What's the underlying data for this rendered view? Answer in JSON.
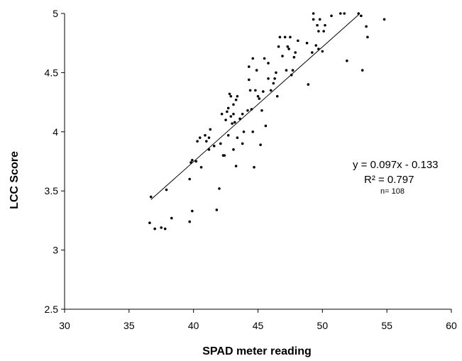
{
  "chart_data": {
    "type": "scatter",
    "title": "",
    "xlabel": "SPAD meter reading",
    "ylabel": "LCC Score",
    "xlim": [
      30,
      60
    ],
    "ylim": [
      2.5,
      5
    ],
    "xticks": [
      30,
      35,
      40,
      45,
      50,
      55,
      60
    ],
    "yticks": [
      2.5,
      3,
      3.5,
      4,
      4.5,
      5
    ],
    "grid": false,
    "legend": "none",
    "colors": {
      "points": "#000000",
      "trendline": "#000000",
      "axes": "#000000"
    },
    "trendline": {
      "slope": 0.097,
      "intercept": -0.133,
      "x_range": [
        36.7,
        52.9
      ]
    },
    "annotations": {
      "equation": "y = 0.097x - 0.133",
      "r_squared": "R² = 0.797",
      "n": "n= 108"
    },
    "points": [
      [
        36.6,
        3.23
      ],
      [
        36.7,
        3.45
      ],
      [
        37.0,
        3.18
      ],
      [
        37.5,
        3.19
      ],
      [
        37.8,
        3.18
      ],
      [
        37.9,
        3.51
      ],
      [
        38.3,
        3.27
      ],
      [
        39.7,
        3.24
      ],
      [
        39.7,
        3.6
      ],
      [
        39.8,
        3.74
      ],
      [
        39.9,
        3.76
      ],
      [
        39.9,
        3.33
      ],
      [
        40.2,
        3.75
      ],
      [
        40.3,
        3.92
      ],
      [
        40.5,
        3.95
      ],
      [
        40.6,
        3.7
      ],
      [
        40.9,
        3.97
      ],
      [
        41.0,
        3.92
      ],
      [
        41.2,
        3.85
      ],
      [
        41.2,
        3.95
      ],
      [
        41.3,
        4.02
      ],
      [
        41.8,
        3.34
      ],
      [
        42.0,
        3.52
      ],
      [
        42.1,
        3.9
      ],
      [
        42.2,
        4.15
      ],
      [
        42.3,
        3.8
      ],
      [
        42.4,
        3.8
      ],
      [
        42.5,
        4.1
      ],
      [
        42.6,
        4.17
      ],
      [
        42.7,
        4.2
      ],
      [
        42.7,
        3.97
      ],
      [
        42.8,
        4.32
      ],
      [
        42.9,
        4.13
      ],
      [
        42.9,
        4.3
      ],
      [
        43.1,
        4.15
      ],
      [
        43.1,
        4.23
      ],
      [
        43.1,
        3.85
      ],
      [
        43.2,
        4.08
      ],
      [
        43.3,
        3.71
      ],
      [
        43.3,
        4.27
      ],
      [
        43.4,
        4.3
      ],
      [
        43.4,
        3.95
      ],
      [
        43.6,
        4.11
      ],
      [
        43.8,
        3.9
      ],
      [
        43.8,
        4.15
      ],
      [
        43.9,
        4.0
      ],
      [
        44.2,
        4.18
      ],
      [
        44.3,
        4.44
      ],
      [
        44.3,
        4.55
      ],
      [
        44.4,
        4.35
      ],
      [
        44.5,
        4.19
      ],
      [
        44.6,
        4.0
      ],
      [
        44.6,
        4.62
      ],
      [
        44.7,
        3.7
      ],
      [
        44.8,
        4.35
      ],
      [
        44.9,
        4.52
      ],
      [
        45.0,
        4.3
      ],
      [
        45.2,
        3.89
      ],
      [
        45.3,
        4.18
      ],
      [
        45.4,
        4.34
      ],
      [
        45.5,
        4.62
      ],
      [
        45.6,
        4.05
      ],
      [
        45.8,
        4.45
      ],
      [
        45.8,
        4.58
      ],
      [
        46.0,
        4.35
      ],
      [
        46.2,
        4.41
      ],
      [
        46.3,
        4.45
      ],
      [
        46.4,
        4.5
      ],
      [
        46.5,
        4.3
      ],
      [
        46.6,
        4.72
      ],
      [
        46.7,
        4.8
      ],
      [
        46.9,
        4.64
      ],
      [
        47.1,
        4.8
      ],
      [
        47.2,
        4.52
      ],
      [
        47.3,
        4.72
      ],
      [
        47.4,
        4.7
      ],
      [
        47.5,
        4.8
      ],
      [
        47.6,
        4.48
      ],
      [
        47.7,
        4.52
      ],
      [
        47.8,
        4.63
      ],
      [
        47.9,
        4.67
      ],
      [
        48.1,
        4.77
      ],
      [
        48.8,
        4.75
      ],
      [
        48.9,
        4.4
      ],
      [
        49.2,
        4.67
      ],
      [
        49.3,
        4.95
      ],
      [
        49.3,
        5.0
      ],
      [
        49.5,
        4.73
      ],
      [
        49.6,
        4.9
      ],
      [
        49.7,
        4.85
      ],
      [
        49.7,
        4.7
      ],
      [
        49.8,
        4.95
      ],
      [
        50.0,
        4.68
      ],
      [
        50.1,
        4.85
      ],
      [
        50.2,
        4.9
      ],
      [
        50.7,
        4.98
      ],
      [
        51.4,
        5.0
      ],
      [
        51.7,
        5.0
      ],
      [
        51.9,
        4.6
      ],
      [
        52.8,
        5.0
      ],
      [
        53.0,
        4.98
      ],
      [
        53.1,
        4.52
      ],
      [
        53.4,
        4.89
      ],
      [
        53.5,
        4.8
      ],
      [
        54.8,
        4.95
      ],
      [
        41.6,
        3.88
      ],
      [
        43.0,
        4.07
      ],
      [
        45.1,
        4.28
      ]
    ]
  }
}
